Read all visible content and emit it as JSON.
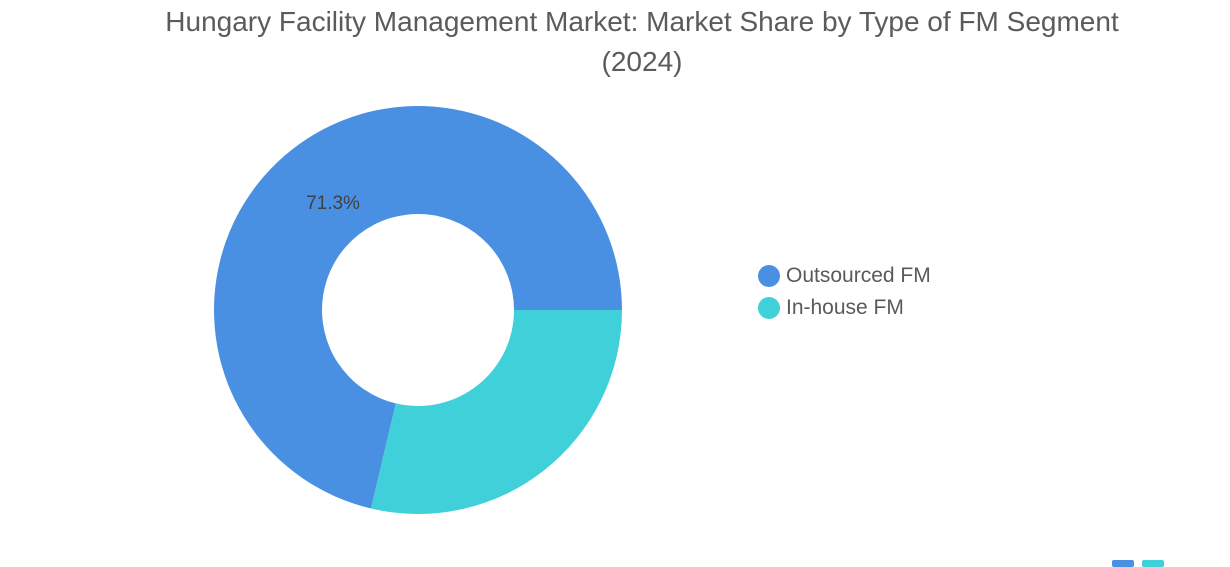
{
  "chart_data": {
    "type": "pie",
    "style": "donut",
    "title": "Hungary Facility Management Market: Market Share by Type of FM Segment (2024)",
    "categories": [
      "Outsourced FM",
      "In-house FM"
    ],
    "values": [
      71.3,
      28.7
    ],
    "unit": "%",
    "data_labels": [
      "71.3%",
      ""
    ],
    "colors": [
      "#4a90e2",
      "#40d0da"
    ],
    "legend_position": "right"
  },
  "brand_colors": [
    "#4a90e2",
    "#40d0da"
  ]
}
